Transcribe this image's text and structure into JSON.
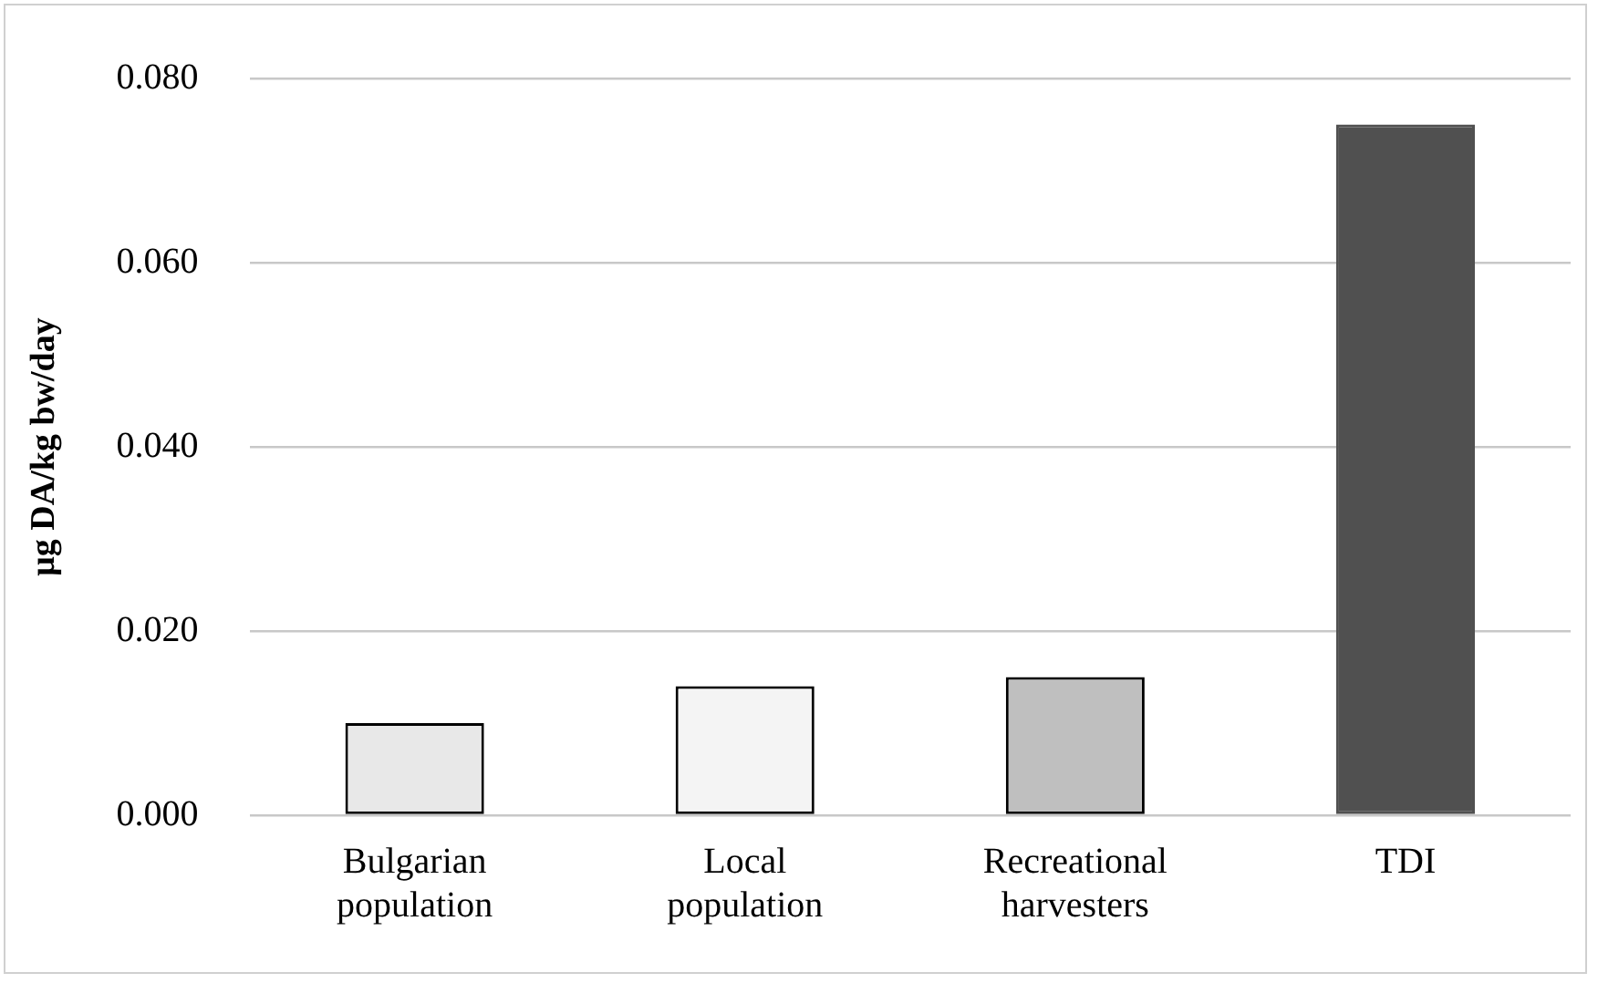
{
  "chart_data": {
    "type": "bar",
    "ylabel": "μg DA/kg bw/day",
    "categories": [
      [
        "Bulgarian",
        "population"
      ],
      [
        "Local",
        "population"
      ],
      [
        "Recreational",
        "harvesters"
      ],
      "TDI"
    ],
    "values": [
      0.01,
      0.014,
      0.015,
      0.075
    ],
    "colors": [
      "#e8e8e8",
      "#f4f4f4",
      "#bfbfbf",
      "#505050"
    ],
    "ylim": [
      0,
      0.08
    ],
    "yticks": [
      {
        "value": 0,
        "label": "0.000"
      },
      {
        "value": 0.02,
        "label": "0.020"
      },
      {
        "value": 0.04,
        "label": "0.040"
      },
      {
        "value": 0.06,
        "label": "0.060"
      },
      {
        "value": 0.08,
        "label": "0.080"
      }
    ],
    "grid": "y",
    "legend": false
  }
}
